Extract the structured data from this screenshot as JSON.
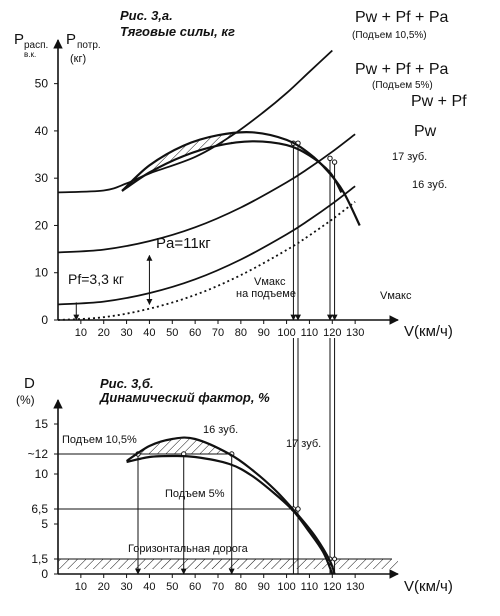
{
  "chart_data": [
    {
      "type": "line",
      "title": "Рис. 3,а.",
      "subtitle": "Тяговые силы, кг",
      "y_axis_label": {
        "main": "P",
        "sub1": "расп.",
        "sub2": "в.к.",
        "main2": "P",
        "sub3": "потр.",
        "unit": "(кг)"
      },
      "xlabel": "V(км/ч)",
      "xlim": [
        0,
        140
      ],
      "ylim": [
        0,
        55
      ],
      "x_ticks": [
        "10",
        "20",
        "30",
        "40",
        "50",
        "60",
        "70",
        "80",
        "90",
        "100",
        "110",
        "120",
        "130"
      ],
      "y_ticks": [
        "0",
        "10",
        "20",
        "30",
        "40",
        "50"
      ],
      "series": [
        {
          "name": "Pw",
          "style": "dotted",
          "x": [
            0,
            20,
            40,
            60,
            80,
            100,
            110,
            120,
            130
          ],
          "y": [
            0,
            0.6,
            2.4,
            5.3,
            9.5,
            14.8,
            17.9,
            21.3,
            25
          ]
        },
        {
          "name": "Pw + Pf",
          "x": [
            0,
            20,
            40,
            60,
            80,
            100,
            110,
            120,
            130
          ],
          "y": [
            3.3,
            3.9,
            5.7,
            8.6,
            12.8,
            18.1,
            21.2,
            24.6,
            28.3
          ]
        },
        {
          "name": "Pw + Pf + Pa (Подъем 5%)",
          "x": [
            0,
            20,
            40,
            60,
            80,
            100,
            110,
            120,
            130
          ],
          "y": [
            14.3,
            14.9,
            16.7,
            19.6,
            23.8,
            29.1,
            32.2,
            35.6,
            39.3
          ]
        },
        {
          "name": "Pw + Pf + Pa (Подъем 10,5%)",
          "x": [
            0,
            20,
            30,
            40,
            60,
            76,
            90,
            100,
            110,
            120
          ],
          "y": [
            27,
            27.4,
            28.9,
            31,
            34.5,
            39,
            44,
            48,
            52.5,
            57
          ]
        },
        {
          "name": "16 зуб.",
          "x": [
            28,
            40,
            55,
            70,
            85,
            100,
            110,
            118,
            125,
            132
          ],
          "y": [
            27.3,
            32.7,
            36.9,
            39.1,
            39.7,
            38.1,
            35.2,
            31.5,
            27,
            20
          ]
        },
        {
          "name": "17 зуб.",
          "x": [
            28,
            40,
            55,
            70,
            85,
            100,
            110,
            119,
            124
          ],
          "y": [
            27.3,
            31.2,
            34.7,
            36.9,
            37.8,
            37,
            34.8,
            31.2,
            27
          ]
        }
      ],
      "annotations": {
        "top_label_1": "Pw + Pf + Pa",
        "top_label_1_note": "(Подъем 10,5%)",
        "top_label_2": "Pw + Pf + Pa",
        "top_label_2_note": "(Подъем 5%)",
        "label_pwpf": "Pw + Pf",
        "label_pw": "Pw",
        "label_17": "17 зуб.",
        "label_16": "16 зуб.",
        "pa": "Pa=11кг",
        "pf": "Pf=3,3 кг",
        "vmax_hill_1": "Vмакс",
        "vmax_hill_2": "на подъеме",
        "vmax": "Vмакс"
      },
      "markers": {
        "hatch_start_x": 28,
        "hatch_end_x": 76,
        "pa_at_x": 40,
        "pa_from": 3.3,
        "pa_to": 14.3,
        "pf_at_x": 8,
        "pf_value": 3.3,
        "vmax_hill": [
          103,
          105
        ],
        "vmax": [
          119,
          121
        ]
      }
    },
    {
      "type": "line",
      "title": "Рис. 3,б.",
      "subtitle": "Динамический фактор, %",
      "y_axis_label": {
        "main": "D",
        "unit": "(%)"
      },
      "xlabel": "V(км/ч)",
      "xlim": [
        0,
        140
      ],
      "ylim": [
        0,
        17
      ],
      "x_ticks": [
        "10",
        "20",
        "30",
        "40",
        "50",
        "60",
        "70",
        "80",
        "90",
        "100",
        "110",
        "120",
        "130"
      ],
      "y_ticks": [
        {
          "label": "0",
          "v": 0
        },
        {
          "label": "1,5",
          "v": 1.5
        },
        {
          "label": "5",
          "v": 5
        },
        {
          "label": "6,5",
          "v": 6.5
        },
        {
          "label": "10",
          "v": 10
        },
        {
          "label": "~12",
          "v": 12
        },
        {
          "label": "15",
          "v": 15
        }
      ],
      "series": [
        {
          "name": "16 зуб.",
          "x": [
            30,
            40,
            50,
            60,
            75,
            85,
            95,
            105,
            113,
            119,
            121
          ],
          "y": [
            11.3,
            12.8,
            13.5,
            13.5,
            12,
            10.4,
            8.4,
            5.9,
            3.6,
            1.3,
            0
          ]
        },
        {
          "name": "17 зуб.",
          "x": [
            30,
            40,
            50,
            60,
            75,
            85,
            95,
            103,
            110,
            116,
            120
          ],
          "y": [
            11.2,
            11.7,
            11.8,
            11.7,
            11,
            9.8,
            8,
            6.3,
            4.2,
            2.2,
            0
          ]
        }
      ],
      "annotations": {
        "label_16": "16 зуб.",
        "label_17": "17 зуб.",
        "hill_10_5": "Подъем 10,5%",
        "hill_5": "Подъем 5%",
        "flat": "Горизонтальная дорога"
      },
      "markers": {
        "level_12_x": [
          35,
          76
        ],
        "level_6_5_x": [
          103,
          105
        ],
        "level_1_5_x": [
          119,
          121
        ]
      }
    }
  ]
}
